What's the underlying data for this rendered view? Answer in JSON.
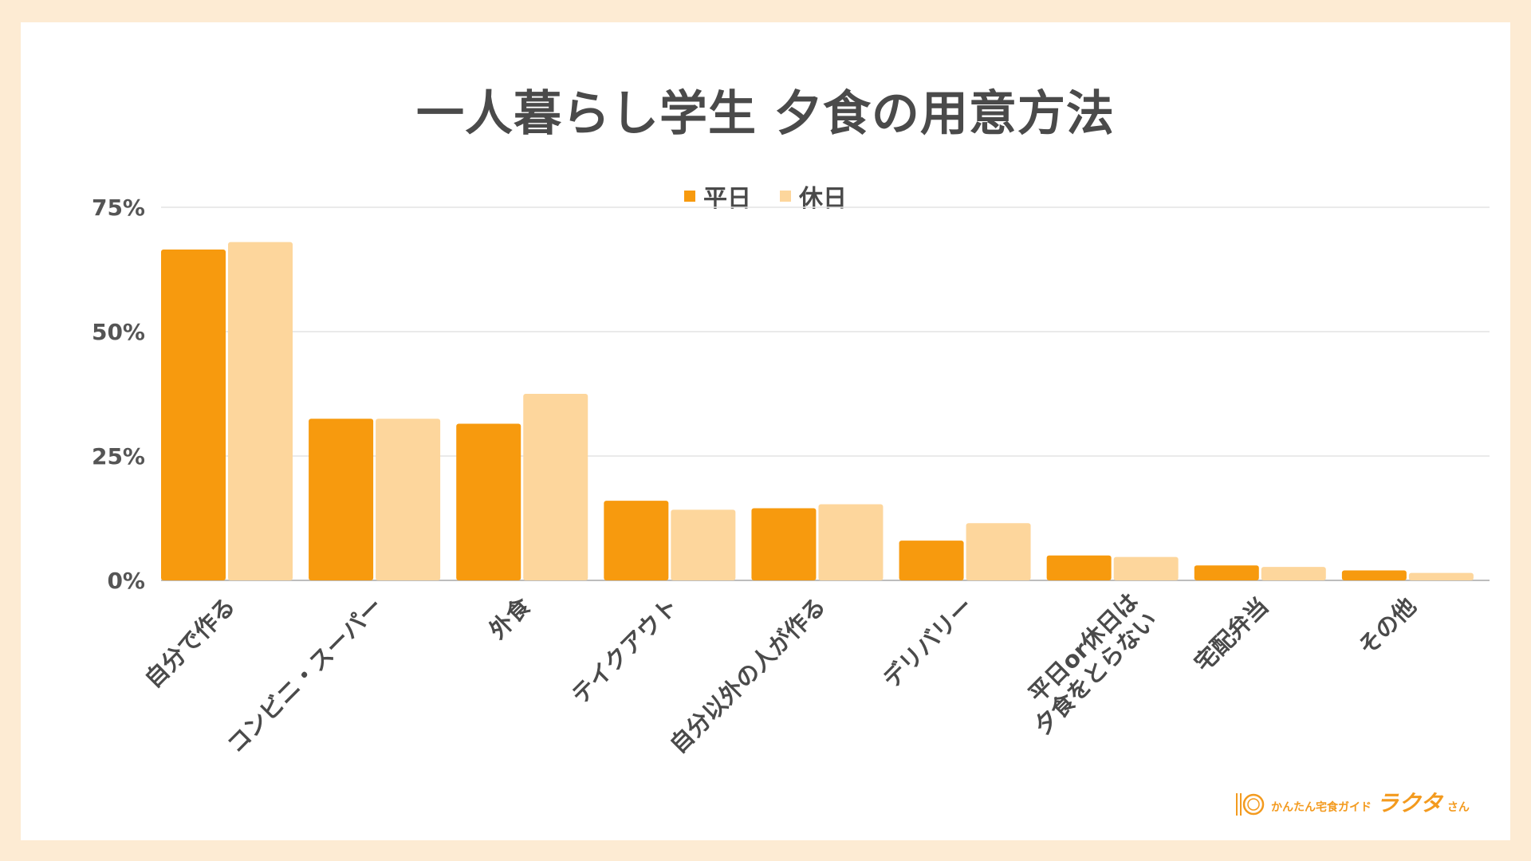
{
  "colors": {
    "weekday": "#f79a0e",
    "holiday": "#fdd69c",
    "background": "#fdebd3",
    "grid": "#e3e3e3",
    "text": "#4a4a4a"
  },
  "chart_data": {
    "type": "bar",
    "title": "一人暮らし学生 夕食の用意方法",
    "legend_position": "top-center",
    "grid": true,
    "ylim": [
      0,
      75
    ],
    "yticks": [
      "0%",
      "25%",
      "50%",
      "75%"
    ],
    "ytick_values": [
      0,
      25,
      50,
      75
    ],
    "categories": [
      "自分で作る",
      "コンビニ・スーパー",
      "外食",
      "テイクアウト",
      "自分以外の人が作る",
      "デリバリー",
      "平日or休日は\n夕食をとらない",
      "宅配弁当",
      "その他"
    ],
    "series": [
      {
        "name": "平日",
        "values": [
          66.5,
          32.5,
          31.5,
          16,
          14.5,
          8,
          5,
          3,
          2
        ]
      },
      {
        "name": "休日",
        "values": [
          68,
          32.5,
          37.5,
          14.2,
          15.3,
          11.5,
          4.7,
          2.7,
          1.5
        ]
      }
    ]
  },
  "logo": {
    "subtitle": "かんたん宅食ガイド",
    "name": "ラクタ",
    "suffix": "さん"
  }
}
